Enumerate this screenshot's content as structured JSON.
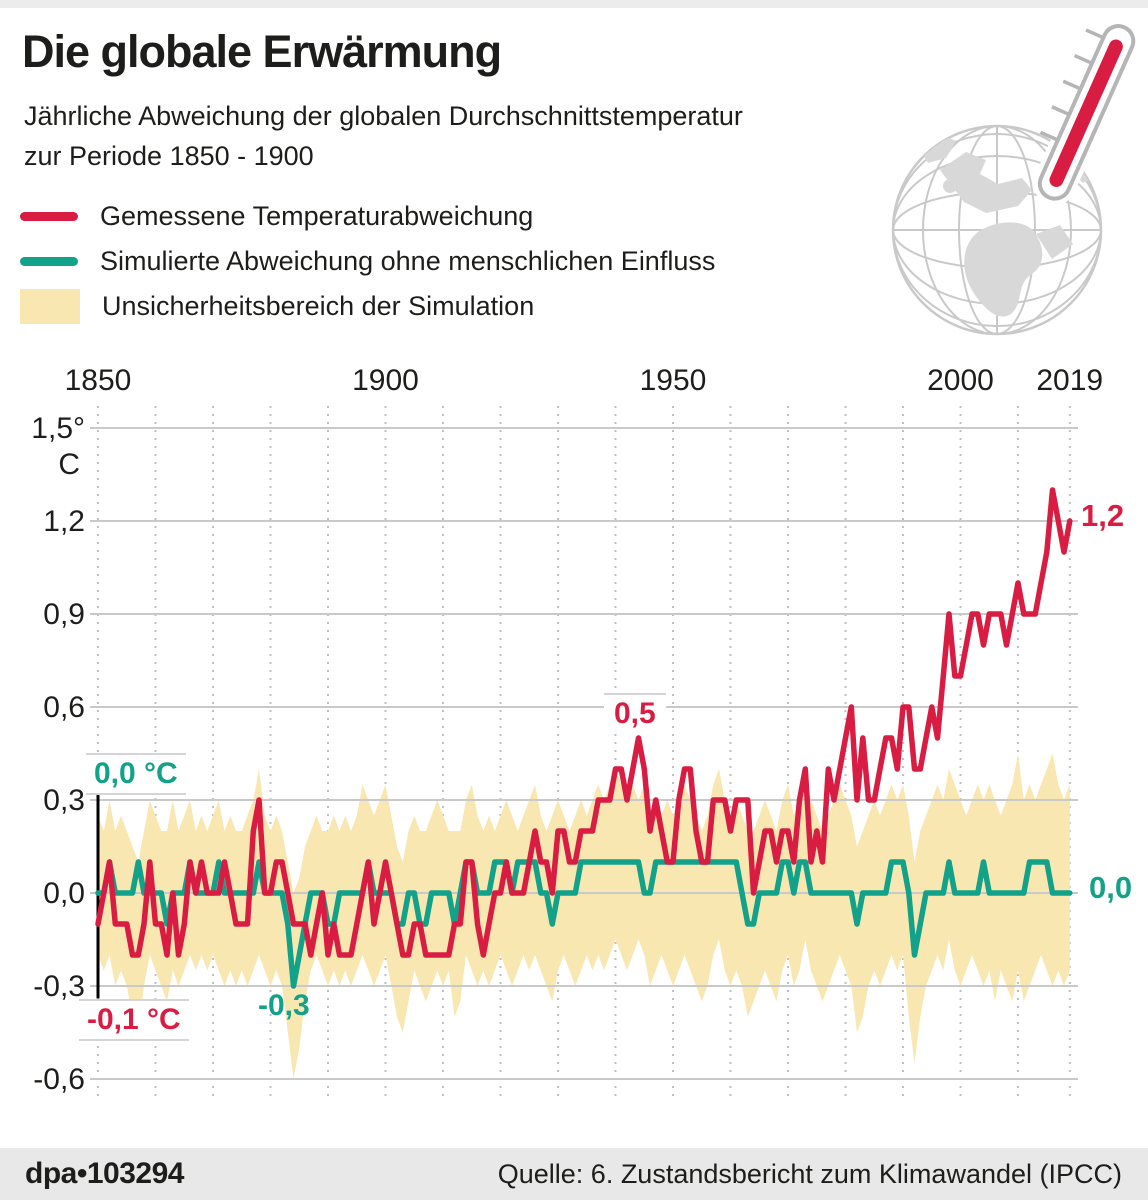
{
  "header": {
    "title": "Die globale Erwärmung",
    "subtitle_line1": "Jährliche Abweichung der globalen Durchschnittstemperatur",
    "subtitle_line2": "zur Periode 1850 - 1900"
  },
  "legend": {
    "observed": "Gemessene Temperaturabweichung",
    "simulated": "Simulierte Abweichung ohne menschlichen Einfluss",
    "uncertainty": "Unsicherheitsbereich der Simulation"
  },
  "colors": {
    "observed": "#d91d42",
    "simulated": "#12a189",
    "uncertainty": "#f9e7b2",
    "grid": "#c9c9c9",
    "dashed_grid": "#bfbfbf",
    "text": "#1d1d1b",
    "footer_bg": "#e8e8e8"
  },
  "annotations": {
    "sim_start": "0,0 °C",
    "obs_start": "-0,1 °C",
    "sim_min": "-0,3",
    "obs_1944": "0,5",
    "obs_end": "1,2",
    "sim_end": "0,0"
  },
  "footer": {
    "brand": "dpa",
    "bullet": "•",
    "graphic_id": "103294",
    "source": "Quelle: 6. Zustandsbericht zum Klimawandel (IPCC)"
  },
  "chart_data": {
    "type": "line",
    "x_start": 1850,
    "x_end": 2019,
    "ylim": [
      -0.6,
      1.5
    ],
    "y_unit": "C",
    "grid": true,
    "x_ticks": [
      {
        "label": "1850",
        "year": 1850
      },
      {
        "label": "1900",
        "year": 1900
      },
      {
        "label": "1950",
        "year": 1950
      },
      {
        "label": "2000",
        "year": 2000
      },
      {
        "label": "2019",
        "year": 2019
      }
    ],
    "y_ticks": [
      {
        "label": "1,5°",
        "v": 1.5
      },
      {
        "label": "1,2",
        "v": 1.2
      },
      {
        "label": "0,9",
        "v": 0.9
      },
      {
        "label": "0,6",
        "v": 0.6
      },
      {
        "label": "0,3",
        "v": 0.3
      },
      {
        "label": "0,0",
        "v": 0.0
      },
      {
        "label": "-0,3",
        "v": -0.3
      },
      {
        "label": "-0,6",
        "v": -0.6
      }
    ],
    "x_gridlines": [
      1850,
      1860,
      1870,
      1880,
      1890,
      1900,
      1910,
      1920,
      1930,
      1940,
      1950,
      1960,
      1970,
      1980,
      1990,
      2000,
      2010,
      2019
    ],
    "series": [
      {
        "name": "Gemessene Temperaturabweichung",
        "color": "#d91d42",
        "values": [
          -0.1,
          0.0,
          0.1,
          -0.1,
          -0.1,
          -0.1,
          -0.2,
          -0.2,
          -0.1,
          0.1,
          -0.1,
          -0.1,
          -0.2,
          0.0,
          -0.2,
          -0.1,
          0.1,
          0.0,
          0.1,
          0.0,
          0.0,
          0.0,
          0.1,
          0.0,
          -0.1,
          -0.1,
          -0.1,
          0.2,
          0.3,
          0.0,
          0.0,
          0.1,
          0.1,
          0.0,
          -0.1,
          -0.1,
          -0.1,
          -0.2,
          -0.1,
          0.0,
          -0.2,
          -0.1,
          -0.2,
          -0.2,
          -0.2,
          -0.1,
          0.0,
          0.1,
          -0.1,
          0.0,
          0.1,
          0.0,
          -0.1,
          -0.2,
          -0.2,
          -0.1,
          -0.1,
          -0.2,
          -0.2,
          -0.2,
          -0.2,
          -0.2,
          -0.1,
          -0.1,
          0.1,
          0.1,
          -0.1,
          -0.2,
          -0.1,
          0.0,
          0.0,
          0.1,
          0.0,
          0.0,
          0.0,
          0.1,
          0.2,
          0.1,
          0.1,
          0.0,
          0.2,
          0.2,
          0.1,
          0.1,
          0.2,
          0.2,
          0.2,
          0.3,
          0.3,
          0.3,
          0.4,
          0.4,
          0.3,
          0.4,
          0.5,
          0.4,
          0.2,
          0.3,
          0.2,
          0.1,
          0.1,
          0.3,
          0.4,
          0.4,
          0.2,
          0.1,
          0.1,
          0.3,
          0.3,
          0.3,
          0.2,
          0.3,
          0.3,
          0.3,
          0.0,
          0.1,
          0.2,
          0.2,
          0.1,
          0.2,
          0.2,
          0.1,
          0.3,
          0.4,
          0.1,
          0.2,
          0.1,
          0.4,
          0.3,
          0.4,
          0.5,
          0.6,
          0.3,
          0.5,
          0.3,
          0.3,
          0.4,
          0.5,
          0.5,
          0.4,
          0.6,
          0.6,
          0.4,
          0.4,
          0.5,
          0.6,
          0.5,
          0.7,
          0.9,
          0.7,
          0.7,
          0.8,
          0.9,
          0.9,
          0.8,
          0.9,
          0.9,
          0.9,
          0.8,
          0.9,
          1.0,
          0.9,
          0.9,
          0.9,
          1.0,
          1.1,
          1.3,
          1.2,
          1.1,
          1.2
        ]
      },
      {
        "name": "Simulierte Abweichung ohne menschlichen Einfluss",
        "color": "#12a189",
        "values": [
          0.0,
          0.0,
          0.1,
          0.0,
          0.0,
          0.0,
          0.0,
          0.1,
          0.0,
          0.0,
          0.0,
          0.0,
          -0.1,
          0.0,
          0.0,
          0.0,
          0.1,
          0.0,
          0.0,
          0.0,
          0.0,
          0.1,
          0.0,
          0.0,
          0.0,
          0.0,
          0.0,
          0.0,
          0.1,
          0.0,
          0.0,
          0.0,
          0.0,
          -0.1,
          -0.3,
          -0.2,
          -0.1,
          0.0,
          0.0,
          0.0,
          -0.1,
          -0.1,
          0.0,
          0.0,
          0.0,
          0.0,
          0.0,
          0.1,
          0.0,
          0.0,
          0.0,
          0.0,
          -0.1,
          -0.1,
          0.0,
          0.0,
          -0.1,
          -0.1,
          0.0,
          0.0,
          0.0,
          0.0,
          -0.1,
          0.0,
          0.1,
          0.1,
          0.0,
          0.0,
          0.0,
          0.1,
          0.1,
          0.1,
          0.0,
          0.1,
          0.1,
          0.1,
          0.1,
          0.0,
          0.0,
          -0.1,
          0.0,
          0.0,
          0.0,
          0.0,
          0.1,
          0.1,
          0.1,
          0.1,
          0.1,
          0.1,
          0.1,
          0.1,
          0.1,
          0.1,
          0.1,
          0.0,
          0.0,
          0.1,
          0.1,
          0.1,
          0.1,
          0.1,
          0.1,
          0.1,
          0.1,
          0.1,
          0.1,
          0.1,
          0.1,
          0.1,
          0.1,
          0.1,
          0.0,
          -0.1,
          -0.1,
          0.0,
          0.0,
          0.0,
          0.0,
          0.1,
          0.1,
          0.0,
          0.1,
          0.1,
          0.0,
          0.0,
          0.0,
          0.0,
          0.0,
          0.0,
          0.0,
          0.0,
          -0.1,
          0.0,
          0.0,
          0.0,
          0.0,
          0.0,
          0.1,
          0.1,
          0.1,
          0.0,
          -0.2,
          -0.1,
          0.0,
          0.0,
          0.0,
          0.0,
          0.1,
          0.0,
          0.0,
          0.0,
          0.0,
          0.0,
          0.1,
          0.0,
          0.0,
          0.0,
          0.0,
          0.0,
          0.0,
          0.0,
          0.1,
          0.1,
          0.1,
          0.1,
          0.0,
          0.0,
          0.0,
          0.0
        ]
      }
    ],
    "band": {
      "name": "Unsicherheitsbereich der Simulation",
      "color": "#f9e7b2",
      "upper": [
        0.25,
        0.2,
        0.3,
        0.2,
        0.25,
        0.2,
        0.15,
        0.1,
        0.2,
        0.3,
        0.25,
        0.2,
        0.2,
        0.3,
        0.2,
        0.25,
        0.3,
        0.2,
        0.25,
        0.2,
        0.25,
        0.3,
        0.2,
        0.25,
        0.2,
        0.2,
        0.25,
        0.3,
        0.4,
        0.25,
        0.2,
        0.25,
        0.2,
        0.1,
        0.0,
        0.05,
        0.15,
        0.2,
        0.25,
        0.2,
        0.2,
        0.25,
        0.2,
        0.25,
        0.2,
        0.25,
        0.35,
        0.3,
        0.25,
        0.3,
        0.35,
        0.25,
        0.15,
        0.1,
        0.2,
        0.25,
        0.2,
        0.2,
        0.25,
        0.3,
        0.25,
        0.2,
        0.2,
        0.2,
        0.3,
        0.35,
        0.25,
        0.2,
        0.25,
        0.2,
        0.25,
        0.3,
        0.25,
        0.2,
        0.25,
        0.3,
        0.35,
        0.25,
        0.2,
        0.25,
        0.3,
        0.25,
        0.2,
        0.25,
        0.3,
        0.25,
        0.3,
        0.35,
        0.3,
        0.35,
        0.4,
        0.35,
        0.3,
        0.35,
        0.3,
        0.35,
        0.25,
        0.3,
        0.25,
        0.3,
        0.25,
        0.3,
        0.35,
        0.3,
        0.25,
        0.2,
        0.25,
        0.35,
        0.4,
        0.3,
        0.25,
        0.3,
        0.25,
        0.2,
        0.2,
        0.25,
        0.3,
        0.25,
        0.2,
        0.3,
        0.35,
        0.25,
        0.3,
        0.4,
        0.3,
        0.25,
        0.2,
        0.25,
        0.3,
        0.35,
        0.3,
        0.25,
        0.15,
        0.2,
        0.25,
        0.3,
        0.25,
        0.3,
        0.35,
        0.3,
        0.35,
        0.25,
        0.1,
        0.2,
        0.25,
        0.3,
        0.35,
        0.3,
        0.4,
        0.35,
        0.3,
        0.25,
        0.3,
        0.35,
        0.3,
        0.35,
        0.3,
        0.25,
        0.3,
        0.35,
        0.45,
        0.3,
        0.35,
        0.3,
        0.35,
        0.4,
        0.45,
        0.35,
        0.3,
        0.35
      ],
      "lower": [
        -0.2,
        -0.25,
        -0.2,
        -0.3,
        -0.25,
        -0.3,
        -0.4,
        -0.45,
        -0.3,
        -0.2,
        -0.25,
        -0.3,
        -0.35,
        -0.25,
        -0.3,
        -0.25,
        -0.2,
        -0.25,
        -0.2,
        -0.25,
        -0.2,
        -0.25,
        -0.3,
        -0.25,
        -0.3,
        -0.25,
        -0.3,
        -0.25,
        -0.2,
        -0.25,
        -0.3,
        -0.25,
        -0.3,
        -0.45,
        -0.6,
        -0.5,
        -0.35,
        -0.25,
        -0.2,
        -0.25,
        -0.3,
        -0.25,
        -0.3,
        -0.25,
        -0.3,
        -0.25,
        -0.2,
        -0.25,
        -0.3,
        -0.25,
        -0.2,
        -0.3,
        -0.4,
        -0.45,
        -0.35,
        -0.25,
        -0.3,
        -0.35,
        -0.3,
        -0.25,
        -0.3,
        -0.25,
        -0.4,
        -0.35,
        -0.2,
        -0.25,
        -0.3,
        -0.25,
        -0.3,
        -0.25,
        -0.2,
        -0.25,
        -0.3,
        -0.25,
        -0.2,
        -0.25,
        -0.2,
        -0.25,
        -0.3,
        -0.35,
        -0.25,
        -0.2,
        -0.25,
        -0.3,
        -0.25,
        -0.2,
        -0.25,
        -0.2,
        -0.25,
        -0.2,
        -0.15,
        -0.2,
        -0.25,
        -0.2,
        -0.15,
        -0.2,
        -0.3,
        -0.25,
        -0.2,
        -0.25,
        -0.3,
        -0.25,
        -0.2,
        -0.25,
        -0.3,
        -0.35,
        -0.3,
        -0.2,
        -0.15,
        -0.25,
        -0.3,
        -0.25,
        -0.3,
        -0.4,
        -0.35,
        -0.3,
        -0.25,
        -0.3,
        -0.35,
        -0.25,
        -0.2,
        -0.3,
        -0.25,
        -0.15,
        -0.25,
        -0.3,
        -0.35,
        -0.3,
        -0.25,
        -0.2,
        -0.25,
        -0.3,
        -0.45,
        -0.4,
        -0.3,
        -0.25,
        -0.3,
        -0.25,
        -0.2,
        -0.25,
        -0.2,
        -0.4,
        -0.55,
        -0.4,
        -0.3,
        -0.25,
        -0.2,
        -0.25,
        -0.15,
        -0.25,
        -0.3,
        -0.25,
        -0.2,
        -0.25,
        -0.3,
        -0.25,
        -0.35,
        -0.25,
        -0.3,
        -0.35,
        -0.25,
        -0.35,
        -0.3,
        -0.25,
        -0.2,
        -0.25,
        -0.3,
        -0.25,
        -0.3,
        -0.25
      ]
    }
  }
}
